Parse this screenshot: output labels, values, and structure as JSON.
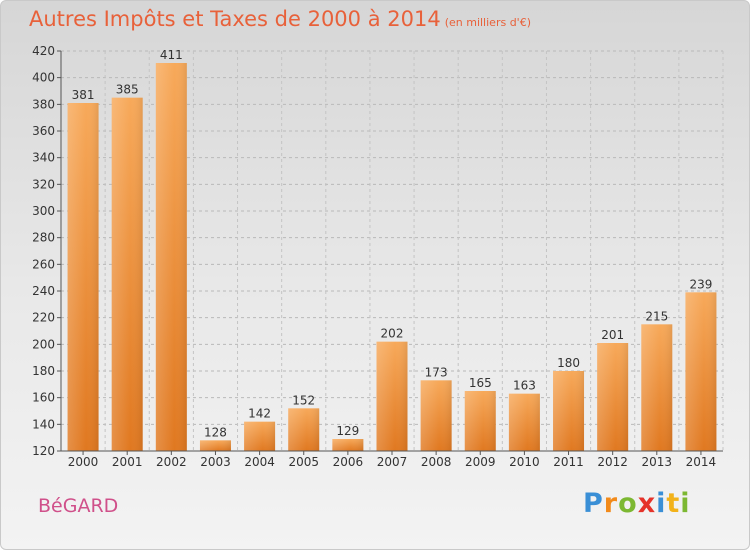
{
  "title": "Autres Impôts et Taxes de 2000 à 2014",
  "title_unit": "(en milliers d'€)",
  "city": "BéGARD",
  "logo": {
    "letters": [
      "P",
      "r",
      "o",
      "x",
      "i",
      "t",
      "i"
    ],
    "colors": [
      "#3a8fd6",
      "#f28a1a",
      "#7cb832",
      "#e5332a",
      "#3a8fd6",
      "#f2b21a",
      "#7cb832"
    ]
  },
  "colors": {
    "title": "#e8613a",
    "city": "#d0508a",
    "bar_top": "#f7a95a",
    "bar_bottom": "#e07820"
  },
  "chart_data": {
    "type": "bar",
    "categories": [
      "2000",
      "2001",
      "2002",
      "2003",
      "2004",
      "2005",
      "2006",
      "2007",
      "2008",
      "2009",
      "2010",
      "2011",
      "2012",
      "2013",
      "2014"
    ],
    "values": [
      381,
      385,
      411,
      128,
      142,
      152,
      129,
      202,
      173,
      165,
      163,
      180,
      201,
      215,
      239
    ],
    "ylim": [
      120,
      420
    ],
    "yticks": [
      120,
      140,
      160,
      180,
      200,
      220,
      240,
      260,
      280,
      300,
      320,
      340,
      360,
      380,
      400,
      420
    ],
    "grid": true
  }
}
